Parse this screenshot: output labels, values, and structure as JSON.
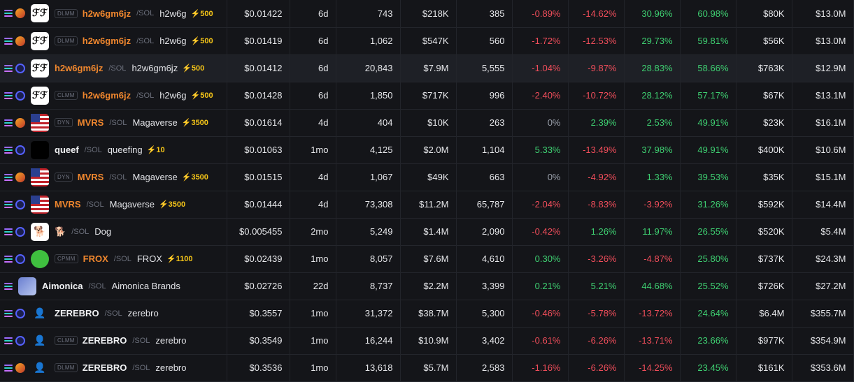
{
  "colors": {
    "positive": "#3ecf71",
    "negative": "#ef4d5a",
    "accent_symbol": "#f0872e",
    "boost": "#f5c518"
  },
  "rows": [
    {
      "dex": "orca",
      "avatar": "white",
      "avatar_text": "ℱℱ",
      "pool": "DLMM",
      "symbol": "h2w6gm6jz",
      "symbol_color": "orange",
      "quote": "/SOL",
      "name": "h2w6g",
      "boost": "⚡500",
      "price": "$0.01422",
      "age": "6d",
      "txns": "743",
      "volume": "$218K",
      "makers": "385",
      "m5": "-0.89%",
      "h1": "-14.62%",
      "h6": "30.96%",
      "h24": "60.98%",
      "liquidity": "$80K",
      "mcap": "$13.0M",
      "highlight": false
    },
    {
      "dex": "orca",
      "avatar": "white",
      "avatar_text": "ℱℱ",
      "pool": "DLMM",
      "symbol": "h2w6gm6jz",
      "symbol_color": "orange",
      "quote": "/SOL",
      "name": "h2w6g",
      "boost": "⚡500",
      "price": "$0.01419",
      "age": "6d",
      "txns": "1,062",
      "volume": "$547K",
      "makers": "560",
      "m5": "-1.72%",
      "h1": "-12.53%",
      "h6": "29.73%",
      "h24": "59.81%",
      "liquidity": "$56K",
      "mcap": "$13.0M",
      "highlight": false
    },
    {
      "dex": "raydium",
      "avatar": "white",
      "avatar_text": "ℱℱ",
      "pool": "",
      "symbol": "h2w6gm6jz",
      "symbol_color": "orange",
      "quote": "/SOL",
      "name": "h2w6gm6jz",
      "boost": "⚡500",
      "price": "$0.01412",
      "age": "6d",
      "txns": "20,843",
      "volume": "$7.9M",
      "makers": "5,555",
      "m5": "-1.04%",
      "h1": "-9.87%",
      "h6": "28.83%",
      "h24": "58.66%",
      "liquidity": "$763K",
      "mcap": "$12.9M",
      "highlight": true
    },
    {
      "dex": "raydium",
      "avatar": "white",
      "avatar_text": "ℱℱ",
      "pool": "CLMM",
      "symbol": "h2w6gm6jz",
      "symbol_color": "orange",
      "quote": "/SOL",
      "name": "h2w6g",
      "boost": "⚡500",
      "price": "$0.01428",
      "age": "6d",
      "txns": "1,850",
      "volume": "$717K",
      "makers": "996",
      "m5": "-2.40%",
      "h1": "-10.72%",
      "h6": "28.12%",
      "h24": "57.17%",
      "liquidity": "$67K",
      "mcap": "$13.1M",
      "highlight": false
    },
    {
      "dex": "orca",
      "avatar": "flag",
      "avatar_text": "",
      "pool": "DYN",
      "symbol": "MVRS",
      "symbol_color": "orange",
      "quote": "/SOL",
      "name": "Magaverse",
      "boost": "⚡3500",
      "price": "$0.01614",
      "age": "4d",
      "txns": "404",
      "volume": "$10K",
      "makers": "263",
      "m5": "0%",
      "h1": "2.39%",
      "h6": "2.53%",
      "h24": "49.91%",
      "liquidity": "$23K",
      "mcap": "$16.1M",
      "highlight": false
    },
    {
      "dex": "raydium",
      "avatar": "black",
      "avatar_text": "",
      "pool": "",
      "symbol": "queef",
      "symbol_color": "white",
      "quote": "/SOL",
      "name": "queefing",
      "boost": "⚡10",
      "price": "$0.01063",
      "age": "1mo",
      "txns": "4,125",
      "volume": "$2.0M",
      "makers": "1,104",
      "m5": "5.33%",
      "h1": "-13.49%",
      "h6": "37.98%",
      "h24": "49.91%",
      "liquidity": "$400K",
      "mcap": "$10.6M",
      "highlight": false
    },
    {
      "dex": "orca",
      "avatar": "flag",
      "avatar_text": "",
      "pool": "DYN",
      "symbol": "MVRS",
      "symbol_color": "orange",
      "quote": "/SOL",
      "name": "Magaverse",
      "boost": "⚡3500",
      "price": "$0.01515",
      "age": "4d",
      "txns": "1,067",
      "volume": "$49K",
      "makers": "663",
      "m5": "0%",
      "h1": "-4.92%",
      "h6": "1.33%",
      "h24": "39.53%",
      "liquidity": "$35K",
      "mcap": "$15.1M",
      "highlight": false
    },
    {
      "dex": "raydium",
      "avatar": "flag",
      "avatar_text": "",
      "pool": "",
      "symbol": "MVRS",
      "symbol_color": "orange",
      "quote": "/SOL",
      "name": "Magaverse",
      "boost": "⚡3500",
      "price": "$0.01444",
      "age": "4d",
      "txns": "73,308",
      "volume": "$11.2M",
      "makers": "65,787",
      "m5": "-2.04%",
      "h1": "-8.83%",
      "h6": "-3.92%",
      "h24": "31.26%",
      "liquidity": "$592K",
      "mcap": "$14.4M",
      "highlight": false
    },
    {
      "dex": "raydium",
      "avatar": "dog",
      "avatar_text": "🐕",
      "pool": "",
      "symbol": "🐕",
      "symbol_color": "white",
      "quote": "/SOL",
      "name": "Dog",
      "boost": "",
      "price": "$0.005455",
      "age": "2mo",
      "txns": "5,249",
      "volume": "$1.4M",
      "makers": "2,090",
      "m5": "-0.42%",
      "h1": "1.26%",
      "h6": "11.97%",
      "h24": "26.55%",
      "liquidity": "$520K",
      "mcap": "$5.4M",
      "highlight": false
    },
    {
      "dex": "raydium",
      "avatar": "frog",
      "avatar_text": "",
      "pool": "CPMM",
      "symbol": "FROX",
      "symbol_color": "orange",
      "quote": "/SOL",
      "name": "FROX",
      "boost": "⚡1100",
      "price": "$0.02439",
      "age": "1mo",
      "txns": "8,057",
      "volume": "$7.6M",
      "makers": "4,610",
      "m5": "0.30%",
      "h1": "-3.26%",
      "h6": "-4.87%",
      "h24": "25.80%",
      "liquidity": "$737K",
      "mcap": "$24.3M",
      "highlight": false
    },
    {
      "dex": "",
      "avatar": "blue",
      "avatar_text": "",
      "pool": "",
      "symbol": "Aimonica",
      "symbol_color": "white",
      "quote": "/SOL",
      "name": "Aimonica Brands",
      "boost": "",
      "price": "$0.02726",
      "age": "22d",
      "txns": "8,737",
      "volume": "$2.2M",
      "makers": "3,399",
      "m5": "0.21%",
      "h1": "5.21%",
      "h6": "44.68%",
      "h24": "25.52%",
      "liquidity": "$726K",
      "mcap": "$27.2M",
      "highlight": false
    },
    {
      "dex": "raydium",
      "avatar": "none",
      "avatar_text": "👤",
      "pool": "",
      "symbol": "ZEREBRO",
      "symbol_color": "white",
      "quote": "/SOL",
      "name": "zerebro",
      "boost": "",
      "price": "$0.3557",
      "age": "1mo",
      "txns": "31,372",
      "volume": "$38.7M",
      "makers": "5,300",
      "m5": "-0.46%",
      "h1": "-5.78%",
      "h6": "-13.72%",
      "h24": "24.64%",
      "liquidity": "$6.4M",
      "mcap": "$355.7M",
      "highlight": false
    },
    {
      "dex": "raydium",
      "avatar": "none",
      "avatar_text": "👤",
      "pool": "CLMM",
      "symbol": "ZEREBRO",
      "symbol_color": "white",
      "quote": "/SOL",
      "name": "zerebro",
      "boost": "",
      "price": "$0.3549",
      "age": "1mo",
      "txns": "16,244",
      "volume": "$10.9M",
      "makers": "3,402",
      "m5": "-0.61%",
      "h1": "-6.26%",
      "h6": "-13.71%",
      "h24": "23.66%",
      "liquidity": "$977K",
      "mcap": "$354.9M",
      "highlight": false
    },
    {
      "dex": "orca",
      "avatar": "none",
      "avatar_text": "👤",
      "pool": "DLMM",
      "symbol": "ZEREBRO",
      "symbol_color": "white",
      "quote": "/SOL",
      "name": "zerebro",
      "boost": "",
      "price": "$0.3536",
      "age": "1mo",
      "txns": "13,618",
      "volume": "$5.7M",
      "makers": "2,583",
      "m5": "-1.16%",
      "h1": "-6.26%",
      "h6": "-14.25%",
      "h24": "23.45%",
      "liquidity": "$161K",
      "mcap": "$353.6M",
      "highlight": false
    }
  ]
}
